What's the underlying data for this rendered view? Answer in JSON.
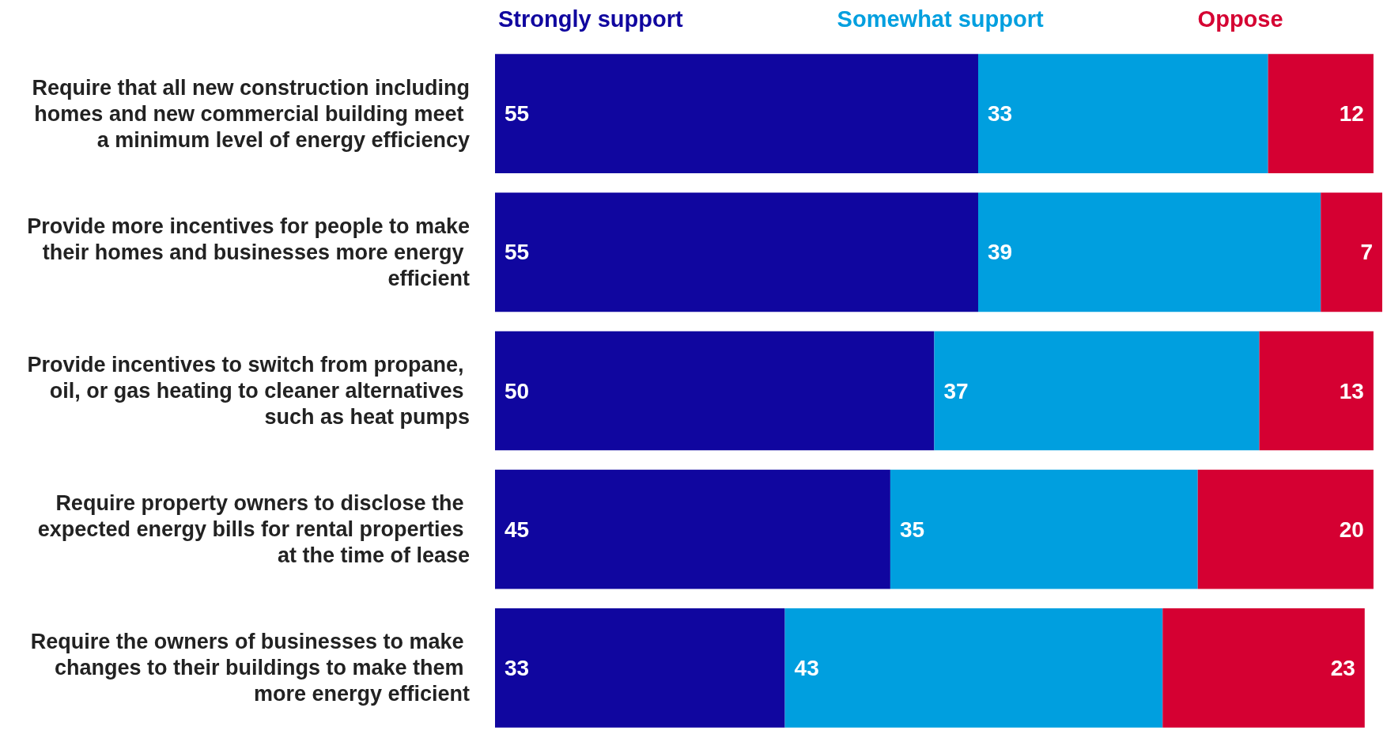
{
  "chart_data": {
    "type": "bar",
    "orientation": "horizontal",
    "stacked": true,
    "data_labels": true,
    "legend": "top",
    "categories": [
      "Require that all new construction including homes and new commercial building meet a minimum level of energy efficiency",
      "Provide more incentives for people to make their homes and businesses more energy efficient",
      "Provide incentives to switch from propane, oil, or gas heating to cleaner alternatives such as heat pumps",
      "Require property owners to disclose the expected energy bills for rental properties at the time of lease",
      "Require the owners of businesses to make changes to their buildings to make them more energy efficient"
    ],
    "series": [
      {
        "name": "Strongly support",
        "color": "#10069f",
        "values": [
          55,
          55,
          50,
          45,
          33
        ]
      },
      {
        "name": "Somewhat support",
        "color": "#009fdf",
        "values": [
          33,
          39,
          37,
          35,
          43
        ]
      },
      {
        "name": "Oppose",
        "color": "#d50032",
        "values": [
          12,
          7,
          13,
          20,
          23
        ]
      }
    ]
  }
}
